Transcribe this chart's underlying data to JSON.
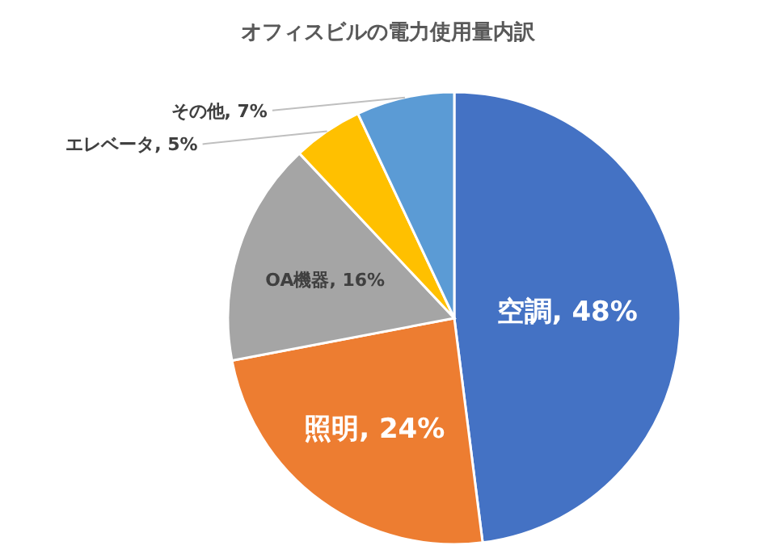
{
  "chart_data": {
    "type": "pie",
    "title": "オフィスビルの電力使用量内訳",
    "categories": [
      "空調",
      "照明",
      "OA機器",
      "エレベータ",
      "その他"
    ],
    "values": [
      48,
      24,
      16,
      5,
      7
    ],
    "colors": [
      "#4472c4",
      "#ed7d31",
      "#a5a5a5",
      "#ffc000",
      "#5b9bd5"
    ],
    "value_labels": [
      "48%",
      "24%",
      "16%",
      "5%",
      "7%"
    ]
  }
}
